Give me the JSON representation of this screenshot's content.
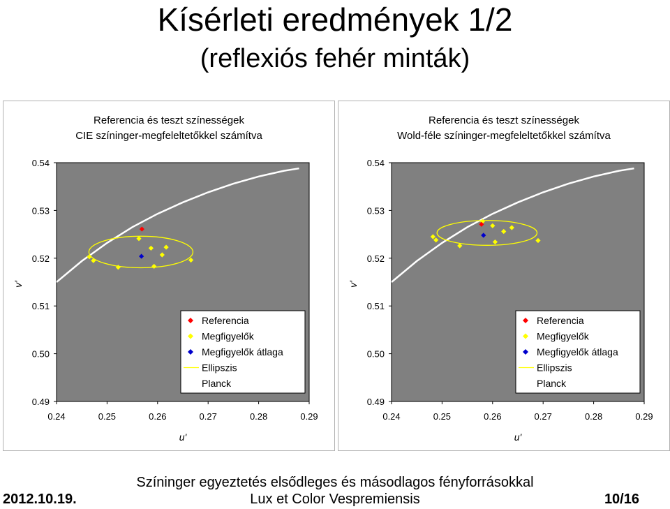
{
  "slide": {
    "title": "Kísérleti eredmények 1/2",
    "subtitle": "(reflexiós fehér minták)",
    "footer_date": "2012.10.19.",
    "footer_line1": "Színinger egyeztetés elsődleges és másodlagos fényforrásokkal",
    "footer_line2": "Lux et Color Vespremiensis",
    "footer_page": "10/16"
  },
  "chart_data": [
    {
      "type": "scatter",
      "title_line1": "Referencia és teszt színességek",
      "title_line2": "CIE színinger-megfeleltetőkkel számítva",
      "xlabel": "u'",
      "ylabel": "v'",
      "xlim": [
        0.24,
        0.29
      ],
      "ylim": [
        0.49,
        0.54
      ],
      "xticks": [
        "0.24",
        "0.25",
        "0.26",
        "0.27",
        "0.28",
        "0.29"
      ],
      "yticks": [
        "0.49",
        "0.50",
        "0.51",
        "0.52",
        "0.53",
        "0.54"
      ],
      "plot_background": "#808080",
      "legend_entries": [
        "Referencia",
        "Megfigyelők",
        "Megfigyelők átlaga",
        "Ellipszis",
        "Planck"
      ],
      "series": [
        {
          "name": "Referencia",
          "color": "#ff0000",
          "marker": "diamond",
          "points": [
            [
              0.2569,
              0.5261
            ]
          ]
        },
        {
          "name": "Megfigyelők",
          "color": "#ffff00",
          "marker": "diamond",
          "points": [
            [
              0.2465,
              0.5203
            ],
            [
              0.2473,
              0.5195
            ],
            [
              0.2522,
              0.5181
            ],
            [
              0.2563,
              0.5241
            ],
            [
              0.2587,
              0.5221
            ],
            [
              0.2593,
              0.5183
            ],
            [
              0.2609,
              0.5207
            ],
            [
              0.2617,
              0.5223
            ],
            [
              0.2666,
              0.5196
            ]
          ]
        },
        {
          "name": "Megfigyelők átlaga",
          "color": "#0000cc",
          "marker": "diamond",
          "points": [
            [
              0.2568,
              0.5204
            ]
          ]
        }
      ],
      "ellipse": {
        "name": "Ellipszis",
        "color": "#ffff00",
        "center": [
          0.2567,
          0.5213
        ],
        "rx": 0.0103,
        "ry": 0.0033
      },
      "planck": {
        "name": "Planck",
        "color": "#ffffff",
        "points": [
          [
            0.24,
            0.515
          ],
          [
            0.245,
            0.5194
          ],
          [
            0.25,
            0.5232
          ],
          [
            0.255,
            0.5265
          ],
          [
            0.26,
            0.5293
          ],
          [
            0.265,
            0.5317
          ],
          [
            0.27,
            0.5338
          ],
          [
            0.275,
            0.5356
          ],
          [
            0.28,
            0.5371
          ],
          [
            0.285,
            0.5383
          ],
          [
            0.288,
            0.5388
          ]
        ]
      }
    },
    {
      "type": "scatter",
      "title_line1": "Referencia és teszt színességek",
      "title_line2": "Wold-féle színinger-megfeleltetőkkel számítva",
      "xlabel": "u'",
      "ylabel": "v'",
      "xlim": [
        0.24,
        0.29
      ],
      "ylim": [
        0.49,
        0.54
      ],
      "xticks": [
        "0.24",
        "0.25",
        "0.26",
        "0.27",
        "0.28",
        "0.29"
      ],
      "yticks": [
        "0.49",
        "0.50",
        "0.51",
        "0.52",
        "0.53",
        "0.54"
      ],
      "plot_background": "#808080",
      "legend_entries": [
        "Referencia",
        "Megfigyelők",
        "Megfigyelők átlaga",
        "Ellipszis",
        "Planck"
      ],
      "series": [
        {
          "name": "Referencia",
          "color": "#ff0000",
          "marker": "diamond",
          "points": [
            [
              0.2578,
              0.5271
            ]
          ]
        },
        {
          "name": "Megfigyelők",
          "color": "#ffff00",
          "marker": "diamond",
          "points": [
            [
              0.2482,
              0.5245
            ],
            [
              0.2488,
              0.5238
            ],
            [
              0.2535,
              0.5226
            ],
            [
              0.258,
              0.5277
            ],
            [
              0.26,
              0.5268
            ],
            [
              0.2605,
              0.5234
            ],
            [
              0.2622,
              0.5256
            ],
            [
              0.2638,
              0.5264
            ],
            [
              0.269,
              0.5237
            ]
          ]
        },
        {
          "name": "Megfigyelők átlaga",
          "color": "#0000cc",
          "marker": "diamond",
          "points": [
            [
              0.2582,
              0.5248
            ]
          ]
        }
      ],
      "ellipse": {
        "name": "Ellipszis",
        "color": "#ffff00",
        "center": [
          0.2589,
          0.5253
        ],
        "rx": 0.0099,
        "ry": 0.0026
      },
      "planck": {
        "name": "Planck",
        "color": "#ffffff",
        "points": [
          [
            0.24,
            0.515
          ],
          [
            0.245,
            0.5194
          ],
          [
            0.25,
            0.5232
          ],
          [
            0.255,
            0.5265
          ],
          [
            0.26,
            0.5293
          ],
          [
            0.265,
            0.5317
          ],
          [
            0.27,
            0.5338
          ],
          [
            0.275,
            0.5356
          ],
          [
            0.28,
            0.5371
          ],
          [
            0.285,
            0.5383
          ],
          [
            0.288,
            0.5388
          ]
        ]
      }
    }
  ]
}
